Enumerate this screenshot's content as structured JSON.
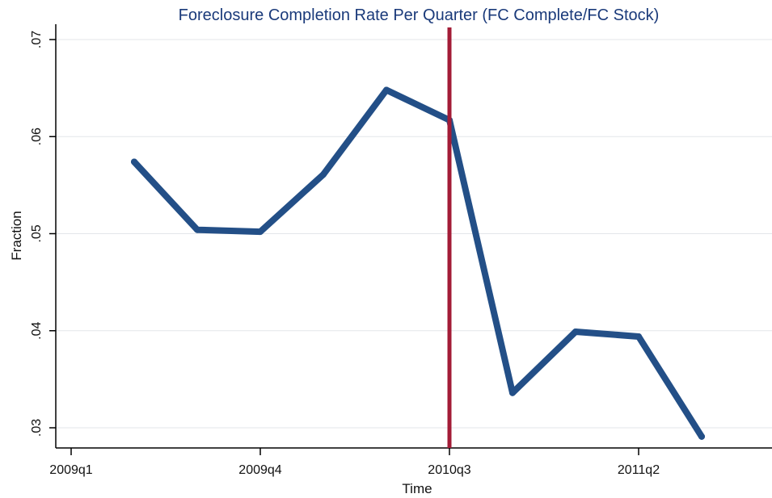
{
  "chart_data": {
    "type": "line",
    "title": "Foreclosure Completion Rate Per Quarter (FC Complete/FC Stock)",
    "xlabel": "Time",
    "ylabel": "Fraction",
    "x_ticks": [
      "2009q1",
      "2009q4",
      "2010q3",
      "2011q2"
    ],
    "y_ticks": [
      ".03",
      ".04",
      ".05",
      ".06",
      ".07"
    ],
    "ylim": [
      0.0292,
      0.0715
    ],
    "xlim": [
      "2009q1",
      "2012q1"
    ],
    "grid": true,
    "series": [
      {
        "x": [
          "2009q2",
          "2009q3",
          "2009q4",
          "2010q1",
          "2010q2",
          "2010q3",
          "2010q4",
          "2011q1",
          "2011q2",
          "2011q3"
        ],
        "values": [
          0.0574,
          0.0504,
          0.0502,
          0.0561,
          0.0648,
          0.0617,
          0.0336,
          0.0399,
          0.0394,
          0.0291
        ],
        "color": "#234f87"
      }
    ],
    "reference_line": {
      "x": "2010q3",
      "color": "#a31c37"
    }
  }
}
